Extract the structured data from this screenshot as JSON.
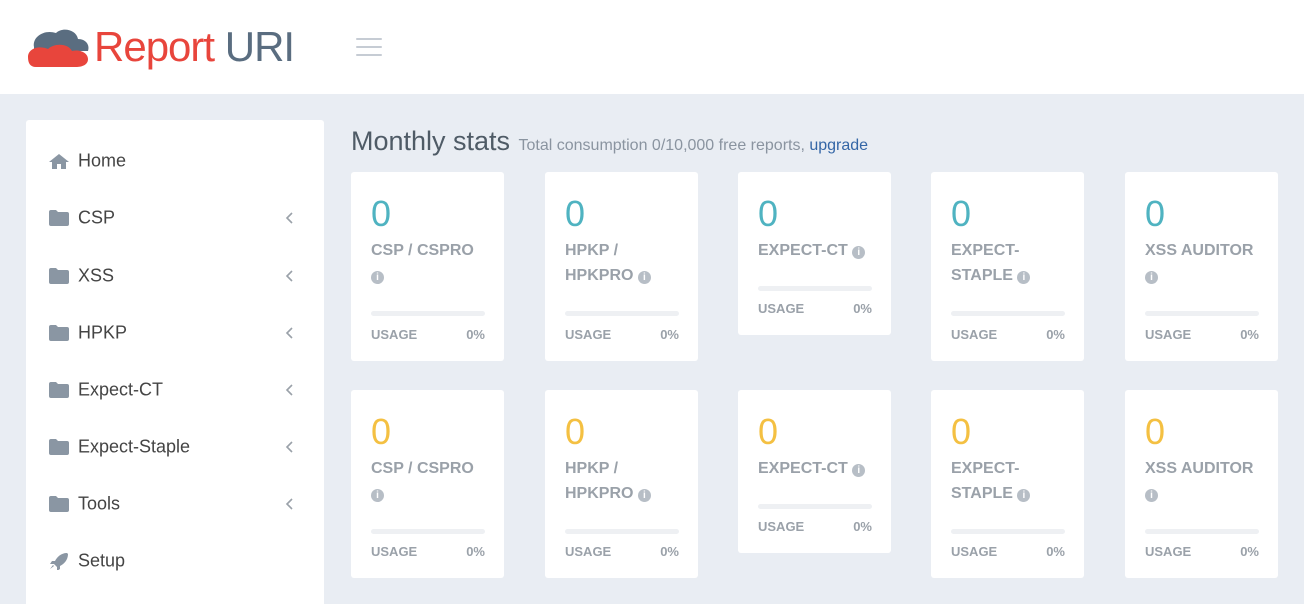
{
  "header": {
    "logo": {
      "word1": "Report",
      "word2": "URI"
    },
    "menu_icon": "hamburger-icon"
  },
  "sidebar": {
    "items": [
      {
        "label": "Home",
        "icon": "home-icon",
        "has_chevron": false
      },
      {
        "label": "CSP",
        "icon": "folder-icon",
        "has_chevron": true
      },
      {
        "label": "XSS",
        "icon": "folder-icon",
        "has_chevron": true
      },
      {
        "label": "HPKP",
        "icon": "folder-icon",
        "has_chevron": true
      },
      {
        "label": "Expect-CT",
        "icon": "folder-icon",
        "has_chevron": true
      },
      {
        "label": "Expect-Staple",
        "icon": "folder-icon",
        "has_chevron": true
      },
      {
        "label": "Tools",
        "icon": "folder-icon",
        "has_chevron": true
      },
      {
        "label": "Setup",
        "icon": "rocket-icon",
        "has_chevron": false
      }
    ]
  },
  "main": {
    "title": "Monthly stats",
    "subtitle": "Total consumption 0/10,000 free reports,",
    "upgrade_link": "upgrade",
    "usage_label": "USAGE",
    "rows": [
      {
        "color": "#4fb3c1",
        "cards": [
          {
            "value": "0",
            "label": "CSP / CSPRO",
            "usage": "0%",
            "usage_fraction": 0
          },
          {
            "value": "0",
            "label": "HPKP / HPKPRO",
            "usage": "0%",
            "usage_fraction": 0
          },
          {
            "value": "0",
            "label": "EXPECT-CT",
            "usage": "0%",
            "usage_fraction": 0
          },
          {
            "value": "0",
            "label": "EXPECT-STAPLE",
            "usage": "0%",
            "usage_fraction": 0
          },
          {
            "value": "0",
            "label": "XSS AUDITOR",
            "usage": "0%",
            "usage_fraction": 0
          }
        ]
      },
      {
        "color": "#f4c042",
        "cards": [
          {
            "value": "0",
            "label": "CSP / CSPRO",
            "usage": "0%",
            "usage_fraction": 0
          },
          {
            "value": "0",
            "label": "HPKP / HPKPRO",
            "usage": "0%",
            "usage_fraction": 0
          },
          {
            "value": "0",
            "label": "EXPECT-CT",
            "usage": "0%",
            "usage_fraction": 0
          },
          {
            "value": "0",
            "label": "EXPECT-STAPLE",
            "usage": "0%",
            "usage_fraction": 0
          },
          {
            "value": "0",
            "label": "XSS AUDITOR",
            "usage": "0%",
            "usage_fraction": 0
          }
        ]
      }
    ]
  },
  "colors": {
    "brand_red": "#e8453c",
    "brand_slate": "#5a6d80",
    "link_blue": "#3466a6",
    "page_bg": "#e9edf3"
  }
}
